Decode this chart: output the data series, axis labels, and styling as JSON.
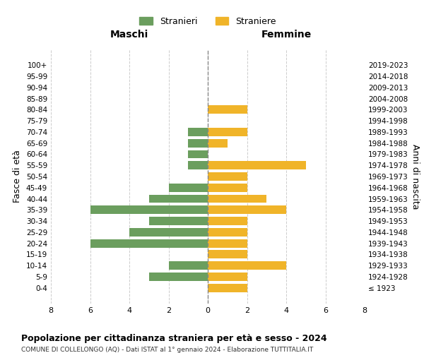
{
  "age_groups": [
    "100+",
    "95-99",
    "90-94",
    "85-89",
    "80-84",
    "75-79",
    "70-74",
    "65-69",
    "60-64",
    "55-59",
    "50-54",
    "45-49",
    "40-44",
    "35-39",
    "30-34",
    "25-29",
    "20-24",
    "15-19",
    "10-14",
    "5-9",
    "0-4"
  ],
  "birth_years": [
    "≤ 1923",
    "1924-1928",
    "1929-1933",
    "1934-1938",
    "1939-1943",
    "1944-1948",
    "1949-1953",
    "1954-1958",
    "1959-1963",
    "1964-1968",
    "1969-1973",
    "1974-1978",
    "1979-1983",
    "1984-1988",
    "1989-1993",
    "1994-1998",
    "1999-2003",
    "2004-2008",
    "2009-2013",
    "2014-2018",
    "2019-2023"
  ],
  "maschi": [
    0,
    0,
    0,
    0,
    0,
    0,
    1,
    1,
    1,
    1,
    0,
    2,
    3,
    6,
    3,
    4,
    6,
    0,
    2,
    3,
    0
  ],
  "femmine": [
    0,
    0,
    0,
    0,
    2,
    0,
    2,
    1,
    0,
    5,
    2,
    2,
    3,
    4,
    2,
    2,
    2,
    2,
    4,
    2,
    2
  ],
  "color_maschi": "#6b9e5e",
  "color_femmine": "#f0b429",
  "title": "Popolazione per cittadinanza straniera per età e sesso - 2024",
  "subtitle": "COMUNE DI COLLELONGO (AQ) - Dati ISTAT al 1° gennaio 2024 - Elaborazione TUTTITALIA.IT",
  "label_maschi": "Stranieri",
  "label_femmine": "Straniere",
  "xlabel_left": "Maschi",
  "xlabel_right": "Femmine",
  "ylabel_left": "Fasce di età",
  "ylabel_right": "Anni di nascita",
  "xlim": 8,
  "background_color": "#ffffff",
  "grid_color": "#cccccc"
}
